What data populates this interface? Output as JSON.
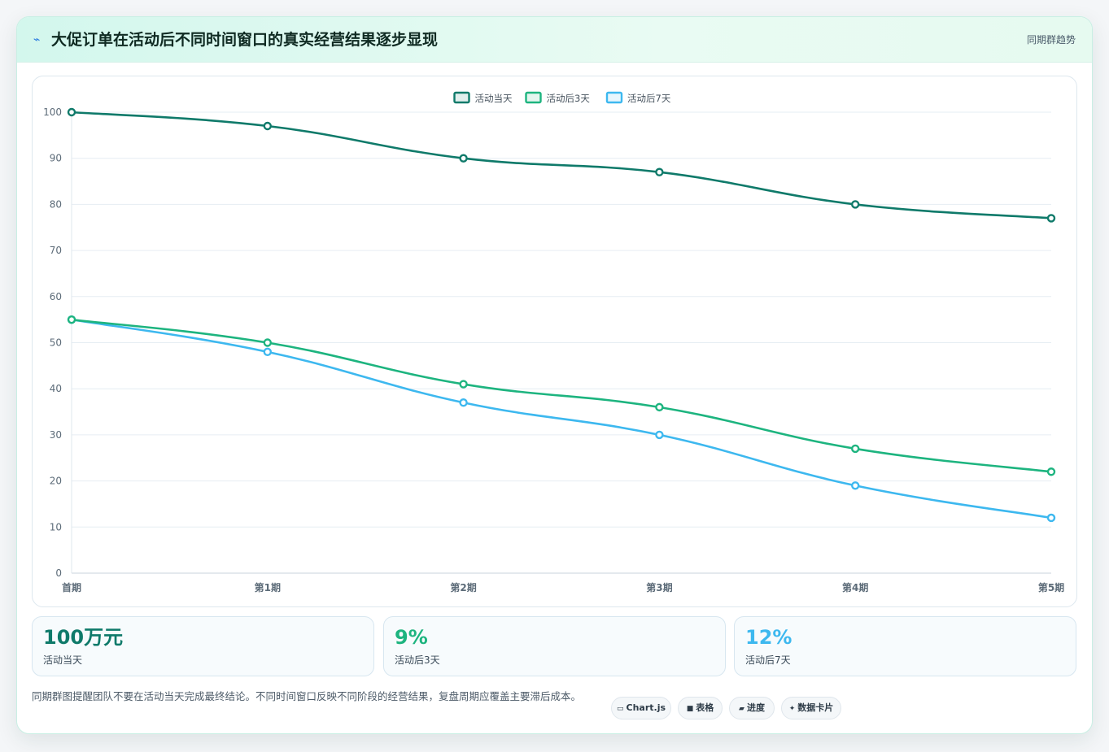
{
  "header": {
    "icon": "lightning-icon",
    "title": "大促订单在活动后不同时间窗口的真实经营结果逐步显现",
    "tag": "同期群趋势"
  },
  "colors": {
    "day0": "#0f7a6a",
    "day3": "#1db47f",
    "day7": "#3db8ef",
    "grid": "#e6edf3"
  },
  "chart_data": {
    "type": "line",
    "title": "",
    "xlabel": "",
    "ylabel": "",
    "categories": [
      "首期",
      "第1期",
      "第2期",
      "第3期",
      "第4期",
      "第5期"
    ],
    "ylim": [
      0,
      100
    ],
    "yticks": [
      0,
      10,
      20,
      30,
      40,
      50,
      60,
      70,
      80,
      90,
      100
    ],
    "grid": true,
    "legend_position": "top-center",
    "series": [
      {
        "name": "活动当天",
        "color": "#0f7a6a",
        "values": [
          100,
          97,
          90,
          87,
          80,
          77
        ]
      },
      {
        "name": "活动后3天",
        "color": "#1db47f",
        "values": [
          55,
          50,
          41,
          36,
          27,
          22
        ]
      },
      {
        "name": "活动后7天",
        "color": "#3db8ef",
        "values": [
          55,
          48,
          37,
          30,
          19,
          12
        ]
      }
    ]
  },
  "kpis": [
    {
      "value": "100万元",
      "label": "活动当天",
      "color": "#0f7a6a"
    },
    {
      "value": "9%",
      "label": "活动后3天",
      "color": "#1db47f"
    },
    {
      "value": "12%",
      "label": "活动后7天",
      "color": "#3db8ef"
    }
  ],
  "note": "同期群图提醒团队不要在活动当天完成最终结论。不同时间窗口反映不同阶段的经营结果，复盘周期应覆盖主要滞后成本。",
  "chips": [
    {
      "icon": "▭",
      "label": "Chart.js"
    },
    {
      "icon": "■",
      "label": "表格"
    },
    {
      "icon": "▰",
      "label": "进度"
    },
    {
      "icon": "✦",
      "label": "数据卡片"
    }
  ]
}
